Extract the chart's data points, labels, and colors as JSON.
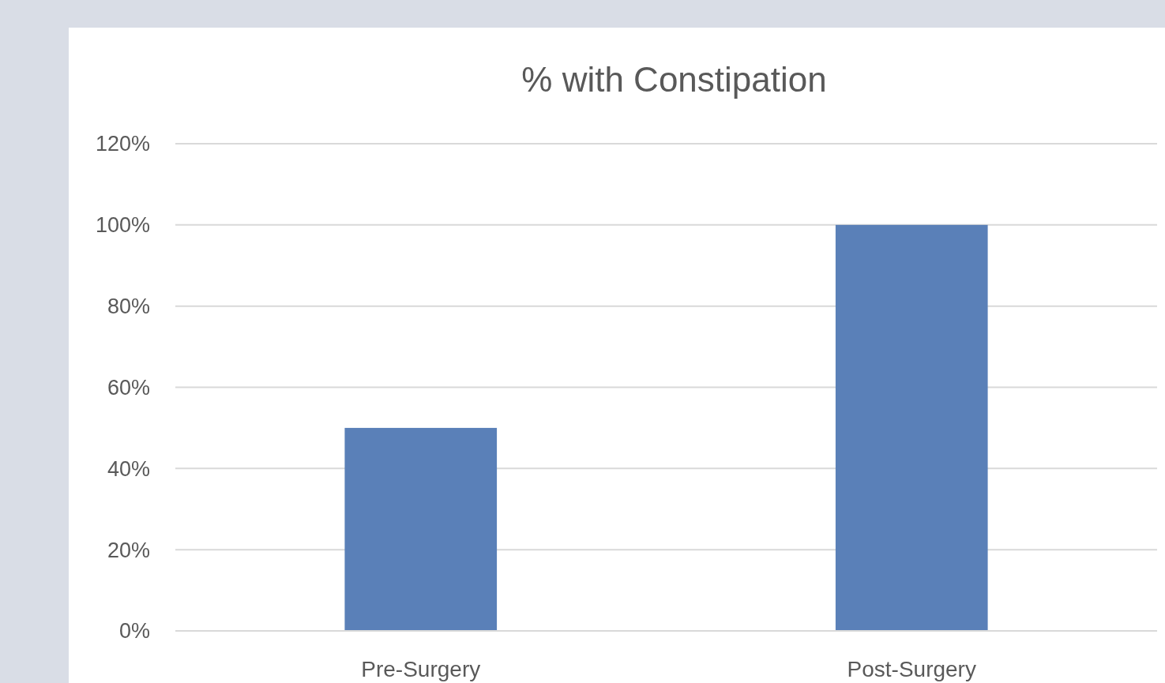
{
  "chart_data": {
    "type": "bar",
    "title": "% with Constipation",
    "categories": [
      "Pre-Surgery",
      "Post-Surgery"
    ],
    "values": [
      50,
      100
    ],
    "color": "#5a80b8",
    "ylim": [
      0,
      120
    ],
    "yticks": [
      {
        "value": 0,
        "label": "0%"
      },
      {
        "value": 20,
        "label": "20%"
      },
      {
        "value": 40,
        "label": "40%"
      },
      {
        "value": 60,
        "label": "60%"
      },
      {
        "value": 80,
        "label": "80%"
      },
      {
        "value": 100,
        "label": "100%"
      },
      {
        "value": 120,
        "label": "120%"
      }
    ],
    "grid": "y"
  }
}
